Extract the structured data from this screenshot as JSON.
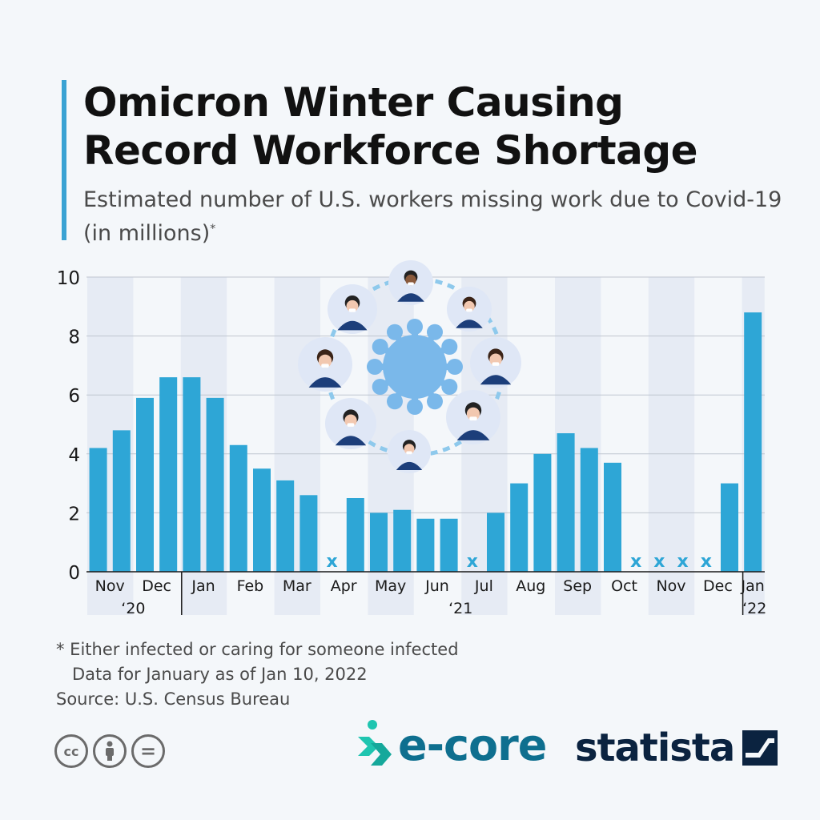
{
  "title": "Omicron Winter Causing Record Workforce Shortage",
  "subtitle": "Estimated number of U.S. workers missing work due to Covid-19 (in millions)",
  "subtitle_mark": "*",
  "colors": {
    "bar": "#2ea6d6",
    "accent": "#3aa2d3",
    "band": "#e6ebf4",
    "missing": "#2ea6d6"
  },
  "chart_data": {
    "type": "bar",
    "unit": "millions",
    "ylim": [
      0,
      10
    ],
    "yticks": [
      0,
      2,
      4,
      6,
      8,
      10
    ],
    "grid": true,
    "values": [
      4.2,
      4.8,
      5.9,
      6.6,
      6.6,
      5.9,
      4.3,
      3.5,
      3.1,
      2.6,
      null,
      2.5,
      2.0,
      2.1,
      1.8,
      1.8,
      null,
      2.0,
      3.0,
      4.0,
      4.7,
      4.2,
      3.7,
      null,
      null,
      null,
      null,
      3.0,
      8.8
    ],
    "missing_marker": "x",
    "month_labels": [
      "Nov",
      "Dec",
      "Jan",
      "Feb",
      "Mar",
      "Apr",
      "May",
      "Jun",
      "Jul",
      "Aug",
      "Sep",
      "Oct",
      "Nov",
      "Dec",
      "Jan"
    ],
    "month_spans": [
      [
        0,
        1
      ],
      [
        2,
        3
      ],
      [
        4,
        5
      ],
      [
        6,
        7
      ],
      [
        8,
        9
      ],
      [
        10,
        11
      ],
      [
        12,
        13
      ],
      [
        14,
        15
      ],
      [
        16,
        17
      ],
      [
        18,
        19
      ],
      [
        20,
        21
      ],
      [
        22,
        23
      ],
      [
        24,
        25
      ],
      [
        26,
        27
      ],
      [
        28,
        28
      ]
    ],
    "year_labels": [
      "‘20",
      "‘21",
      "‘22"
    ],
    "year_spans": [
      [
        0,
        3
      ],
      [
        4,
        27
      ],
      [
        28,
        28
      ]
    ]
  },
  "notes": {
    "footnote": "* Either infected or caring for someone infected",
    "data_note": "Data for January as of Jan 10, 2022",
    "source": "Source: U.S. Census Bureau"
  },
  "license_icons": [
    "cc-icon",
    "by-icon",
    "nd-icon"
  ],
  "license_labels": [
    "cc",
    "=",
    ""
  ],
  "brands": {
    "ecore": "e-core",
    "statista": "statista"
  }
}
